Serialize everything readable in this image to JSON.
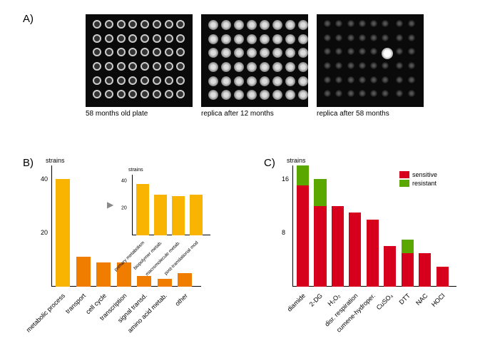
{
  "panelA": {
    "label": "A)",
    "captions": [
      "58 months old plate",
      "replica after 12 months",
      "replica after 58 months"
    ]
  },
  "panelB": {
    "label": "B)",
    "y_label": "strains",
    "y_ticks": [
      20,
      40
    ],
    "y_max": 45,
    "categories": [
      "metabolic process",
      "transport",
      "cell cycle",
      "transcription",
      "signal transd.",
      "amino acid metab.",
      "other"
    ],
    "values": [
      40,
      11,
      9,
      9,
      4,
      3,
      5
    ],
    "bar_colors": [
      "#f8b400",
      "#f07d00",
      "#f07d00",
      "#f07d00",
      "#f07d00",
      "#f07d00",
      "#f07d00"
    ],
    "inset": {
      "y_label": "strains",
      "y_ticks": [
        20,
        40
      ],
      "y_max": 45,
      "categories": [
        "primary metabolism",
        "biopolymer metab.",
        "macromolecule metab.",
        "post-translational mod"
      ],
      "values": [
        38,
        30,
        29,
        30
      ],
      "bar_color": "#f8b400"
    }
  },
  "panelC": {
    "label": "C)",
    "y_label": "strains",
    "y_ticks": [
      8,
      16
    ],
    "y_max": 18,
    "categories": [
      "diamide",
      "2-DG",
      "H₂O₂",
      "disr. respiration",
      "cumene-hydroper.",
      "CuSO₄",
      "DTT",
      "NAC",
      "HOCl"
    ],
    "sensitive": [
      15,
      12,
      12,
      11,
      10,
      6,
      5,
      5,
      3
    ],
    "resistant": [
      3,
      4,
      0,
      0,
      0,
      0,
      2,
      0,
      0
    ],
    "colors": {
      "sensitive": "#d6001c",
      "resistant": "#5aa700"
    },
    "legend": [
      "sensitive",
      "resistant"
    ]
  }
}
